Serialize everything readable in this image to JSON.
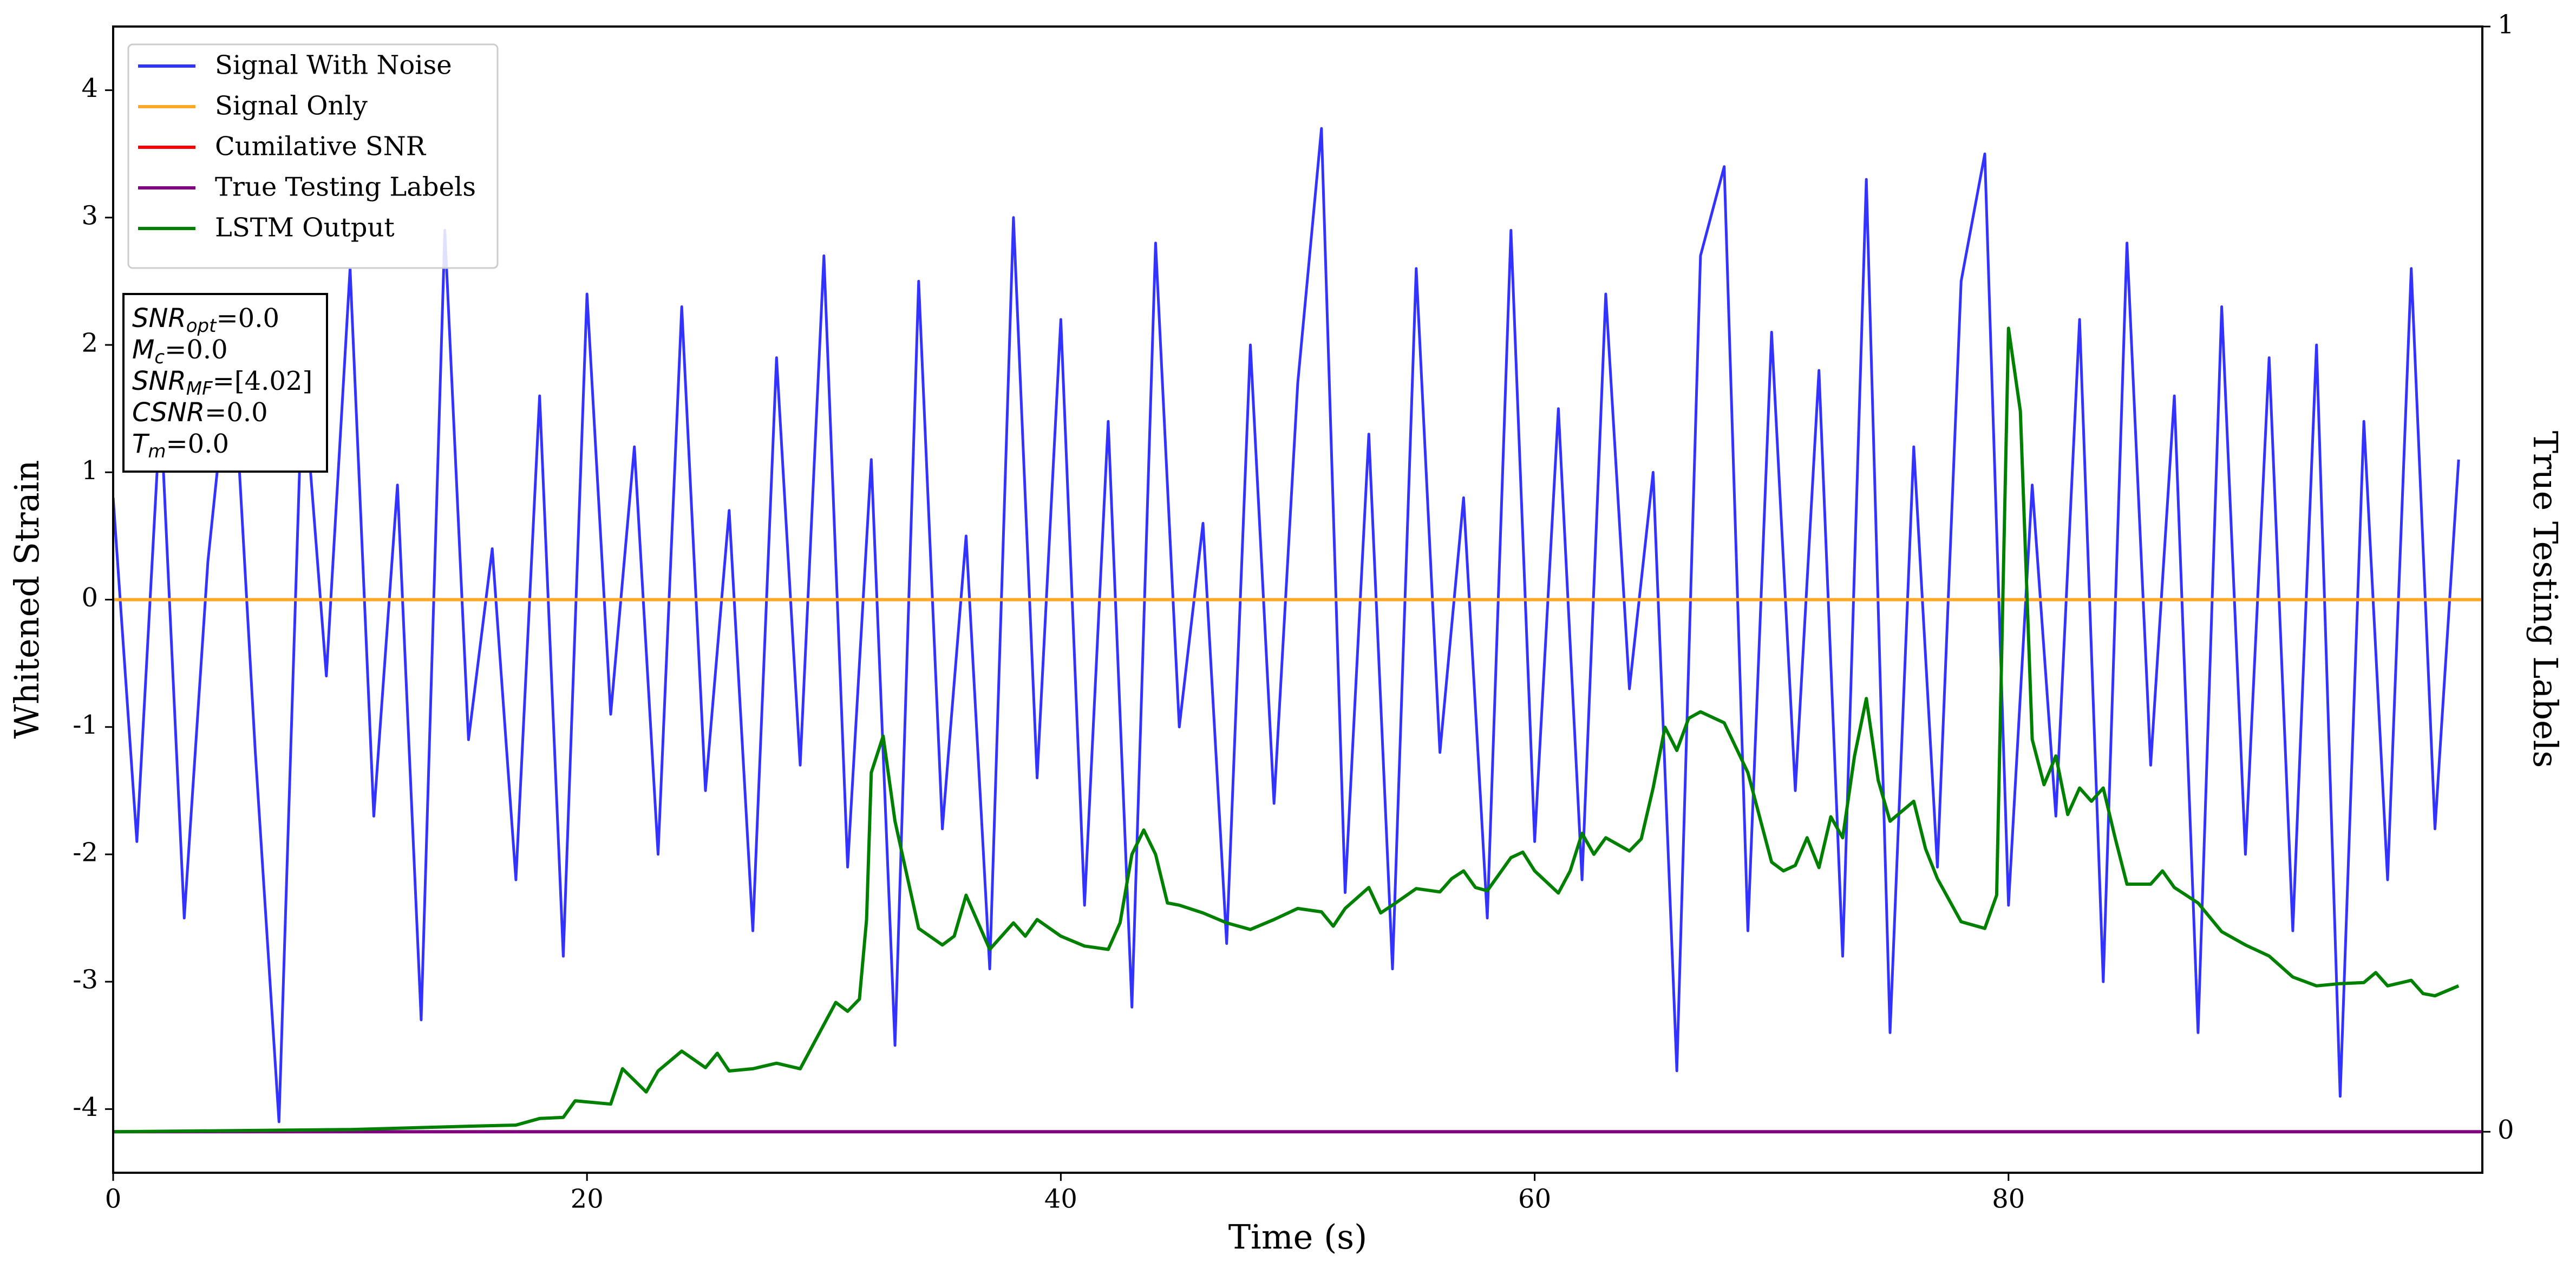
{
  "chart_data": {
    "type": "line",
    "xlabel": "Time (s)",
    "ylabel": "Whitened Strain",
    "y2label": "True Testing Labels",
    "xlim": [
      0,
      100
    ],
    "ylim": [
      -4.5,
      4.5
    ],
    "y2lim": [
      -0.0371,
      1
    ],
    "xticks": [
      0,
      20,
      40,
      60,
      80
    ],
    "yticks": [
      -4,
      -3,
      -2,
      -1,
      0,
      1,
      2,
      3,
      4
    ],
    "y2ticks": [
      0,
      1
    ],
    "grid": false,
    "legend": "upper left",
    "annotations": [
      {
        "base": "SNR",
        "sub": "opt",
        "text": "=0.0"
      },
      {
        "base": "M",
        "sub": "c",
        "text": "=0.0"
      },
      {
        "base": "SNR",
        "sub": "MF",
        "text": "=[4.02]"
      },
      {
        "base": "CSNR",
        "sub": null,
        "text": "=0.0"
      },
      {
        "base": "T",
        "sub": "m",
        "text": "=0.0"
      }
    ],
    "series": [
      {
        "name": "Signal With Noise",
        "color": "#3333ff",
        "axis": "y",
        "x": [
          0,
          1,
          2,
          3,
          4,
          5,
          6,
          7,
          8,
          9,
          10,
          11,
          12,
          13,
          14,
          15,
          16,
          17,
          18,
          19,
          20,
          21,
          22,
          23,
          24,
          25,
          26,
          27,
          28,
          29,
          30,
          31,
          32,
          33,
          34,
          35,
          36,
          37,
          38,
          39,
          40,
          41,
          42,
          43,
          44,
          45,
          46,
          47,
          48,
          49,
          50,
          51,
          52,
          53,
          54,
          55,
          56,
          57,
          58,
          59,
          60,
          61,
          62,
          63,
          64,
          65,
          66,
          67,
          68,
          69,
          70,
          71,
          72,
          73,
          74,
          75,
          76,
          77,
          78,
          79,
          80,
          81,
          82,
          83,
          84,
          85,
          86,
          87,
          88,
          89,
          90,
          91,
          92,
          93,
          94,
          95,
          96,
          97,
          98,
          99
        ],
        "values": [
          0.8,
          -1.9,
          1.5,
          -2.5,
          0.3,
          2.1,
          -1.2,
          -4.1,
          1.8,
          -0.6,
          2.6,
          -1.7,
          0.9,
          -3.3,
          2.9,
          -1.1,
          0.4,
          -2.2,
          1.6,
          -2.8,
          2.4,
          -0.9,
          1.2,
          -2.0,
          2.3,
          -1.5,
          0.7,
          -2.6,
          1.9,
          -1.3,
          2.7,
          -2.1,
          1.1,
          -3.5,
          2.5,
          -1.8,
          0.5,
          -2.9,
          3.0,
          -1.4,
          2.2,
          -2.4,
          1.4,
          -3.2,
          2.8,
          -1.0,
          0.6,
          -2.7,
          2.0,
          -1.6,
          1.7,
          3.7,
          -2.3,
          1.3,
          -2.9,
          2.6,
          -1.2,
          0.8,
          -2.5,
          2.9,
          -1.9,
          1.5,
          -2.2,
          2.4,
          -0.7,
          1.0,
          -3.7,
          2.7,
          3.4,
          -2.6,
          2.1,
          -1.5,
          1.8,
          -2.8,
          3.3,
          -3.4,
          1.2,
          -2.1,
          2.5,
          3.5,
          -2.4,
          0.9,
          -1.7,
          2.2,
          -3.0,
          2.8,
          -1.3,
          1.6,
          -3.4,
          2.3,
          -2.0,
          1.9,
          -2.6,
          2.0,
          -3.9,
          1.4,
          -2.2,
          2.6,
          -1.8,
          1.1
        ]
      },
      {
        "name": "Signal Only",
        "color": "#ffa726",
        "axis": "y",
        "x": [
          0,
          100
        ],
        "values": [
          0,
          0
        ]
      },
      {
        "name": "Cumilative SNR",
        "color": "#ff0000",
        "axis": "y",
        "x": [
          0,
          100
        ],
        "values": [
          0,
          0
        ]
      },
      {
        "name": "True Testing Labels",
        "color": "#800080",
        "axis": "y2",
        "x": [
          0,
          100
        ],
        "values": [
          0,
          0
        ]
      },
      {
        "name": "LSTM Output",
        "color": "#008000",
        "axis": "y2",
        "x": [
          0,
          10,
          15,
          17,
          18,
          19,
          19.5,
          21,
          21.5,
          22.5,
          23,
          24,
          25,
          25.5,
          26,
          27,
          28,
          29,
          29.5,
          30.5,
          31,
          31.5,
          31.8,
          32,
          32.5,
          33,
          34,
          35,
          35.5,
          36,
          37,
          38,
          38.5,
          39,
          40,
          41,
          42,
          42.5,
          43,
          43.5,
          44,
          44.5,
          45,
          46,
          47,
          48,
          49,
          50,
          51,
          51.5,
          52,
          53,
          53.5,
          54,
          55,
          56,
          56.5,
          57,
          57.5,
          58,
          59,
          59.5,
          60,
          61,
          61.5,
          62,
          62.5,
          63,
          64,
          64.5,
          65,
          65.5,
          66,
          66.5,
          67,
          68,
          69,
          70,
          70.5,
          71,
          71.5,
          72,
          72.5,
          73,
          73.5,
          74,
          74.5,
          75,
          76,
          76.5,
          77,
          78,
          79,
          79.5,
          80,
          80.5,
          81,
          81.5,
          82,
          82.5,
          83,
          83.5,
          84,
          84.5,
          85,
          86,
          86.5,
          87,
          88,
          89,
          90,
          91,
          92,
          93,
          94,
          95,
          95.5,
          96,
          97,
          97.5,
          98,
          99
        ],
        "values": [
          0,
          0.002,
          0.005,
          0.006,
          0.012,
          0.013,
          0.028,
          0.025,
          0.057,
          0.036,
          0.055,
          0.073,
          0.058,
          0.071,
          0.055,
          0.057,
          0.062,
          0.057,
          0.077,
          0.117,
          0.109,
          0.12,
          0.192,
          0.325,
          0.358,
          0.281,
          0.184,
          0.169,
          0.177,
          0.214,
          0.165,
          0.189,
          0.177,
          0.192,
          0.177,
          0.168,
          0.165,
          0.189,
          0.251,
          0.273,
          0.251,
          0.207,
          0.205,
          0.198,
          0.189,
          0.183,
          0.192,
          0.202,
          0.199,
          0.186,
          0.202,
          0.221,
          0.198,
          0.205,
          0.22,
          0.217,
          0.229,
          0.236,
          0.221,
          0.218,
          0.248,
          0.253,
          0.236,
          0.216,
          0.236,
          0.27,
          0.251,
          0.266,
          0.254,
          0.265,
          0.311,
          0.366,
          0.345,
          0.374,
          0.38,
          0.37,
          0.325,
          0.244,
          0.236,
          0.241,
          0.266,
          0.239,
          0.285,
          0.266,
          0.34,
          0.392,
          0.318,
          0.281,
          0.299,
          0.256,
          0.229,
          0.19,
          0.184,
          0.214,
          0.727,
          0.652,
          0.355,
          0.314,
          0.34,
          0.287,
          0.311,
          0.299,
          0.311,
          0.266,
          0.224,
          0.224,
          0.236,
          0.221,
          0.207,
          0.181,
          0.169,
          0.159,
          0.14,
          0.132,
          0.134,
          0.135,
          0.144,
          0.132,
          0.137,
          0.125,
          0.123,
          0.132
        ]
      }
    ]
  }
}
